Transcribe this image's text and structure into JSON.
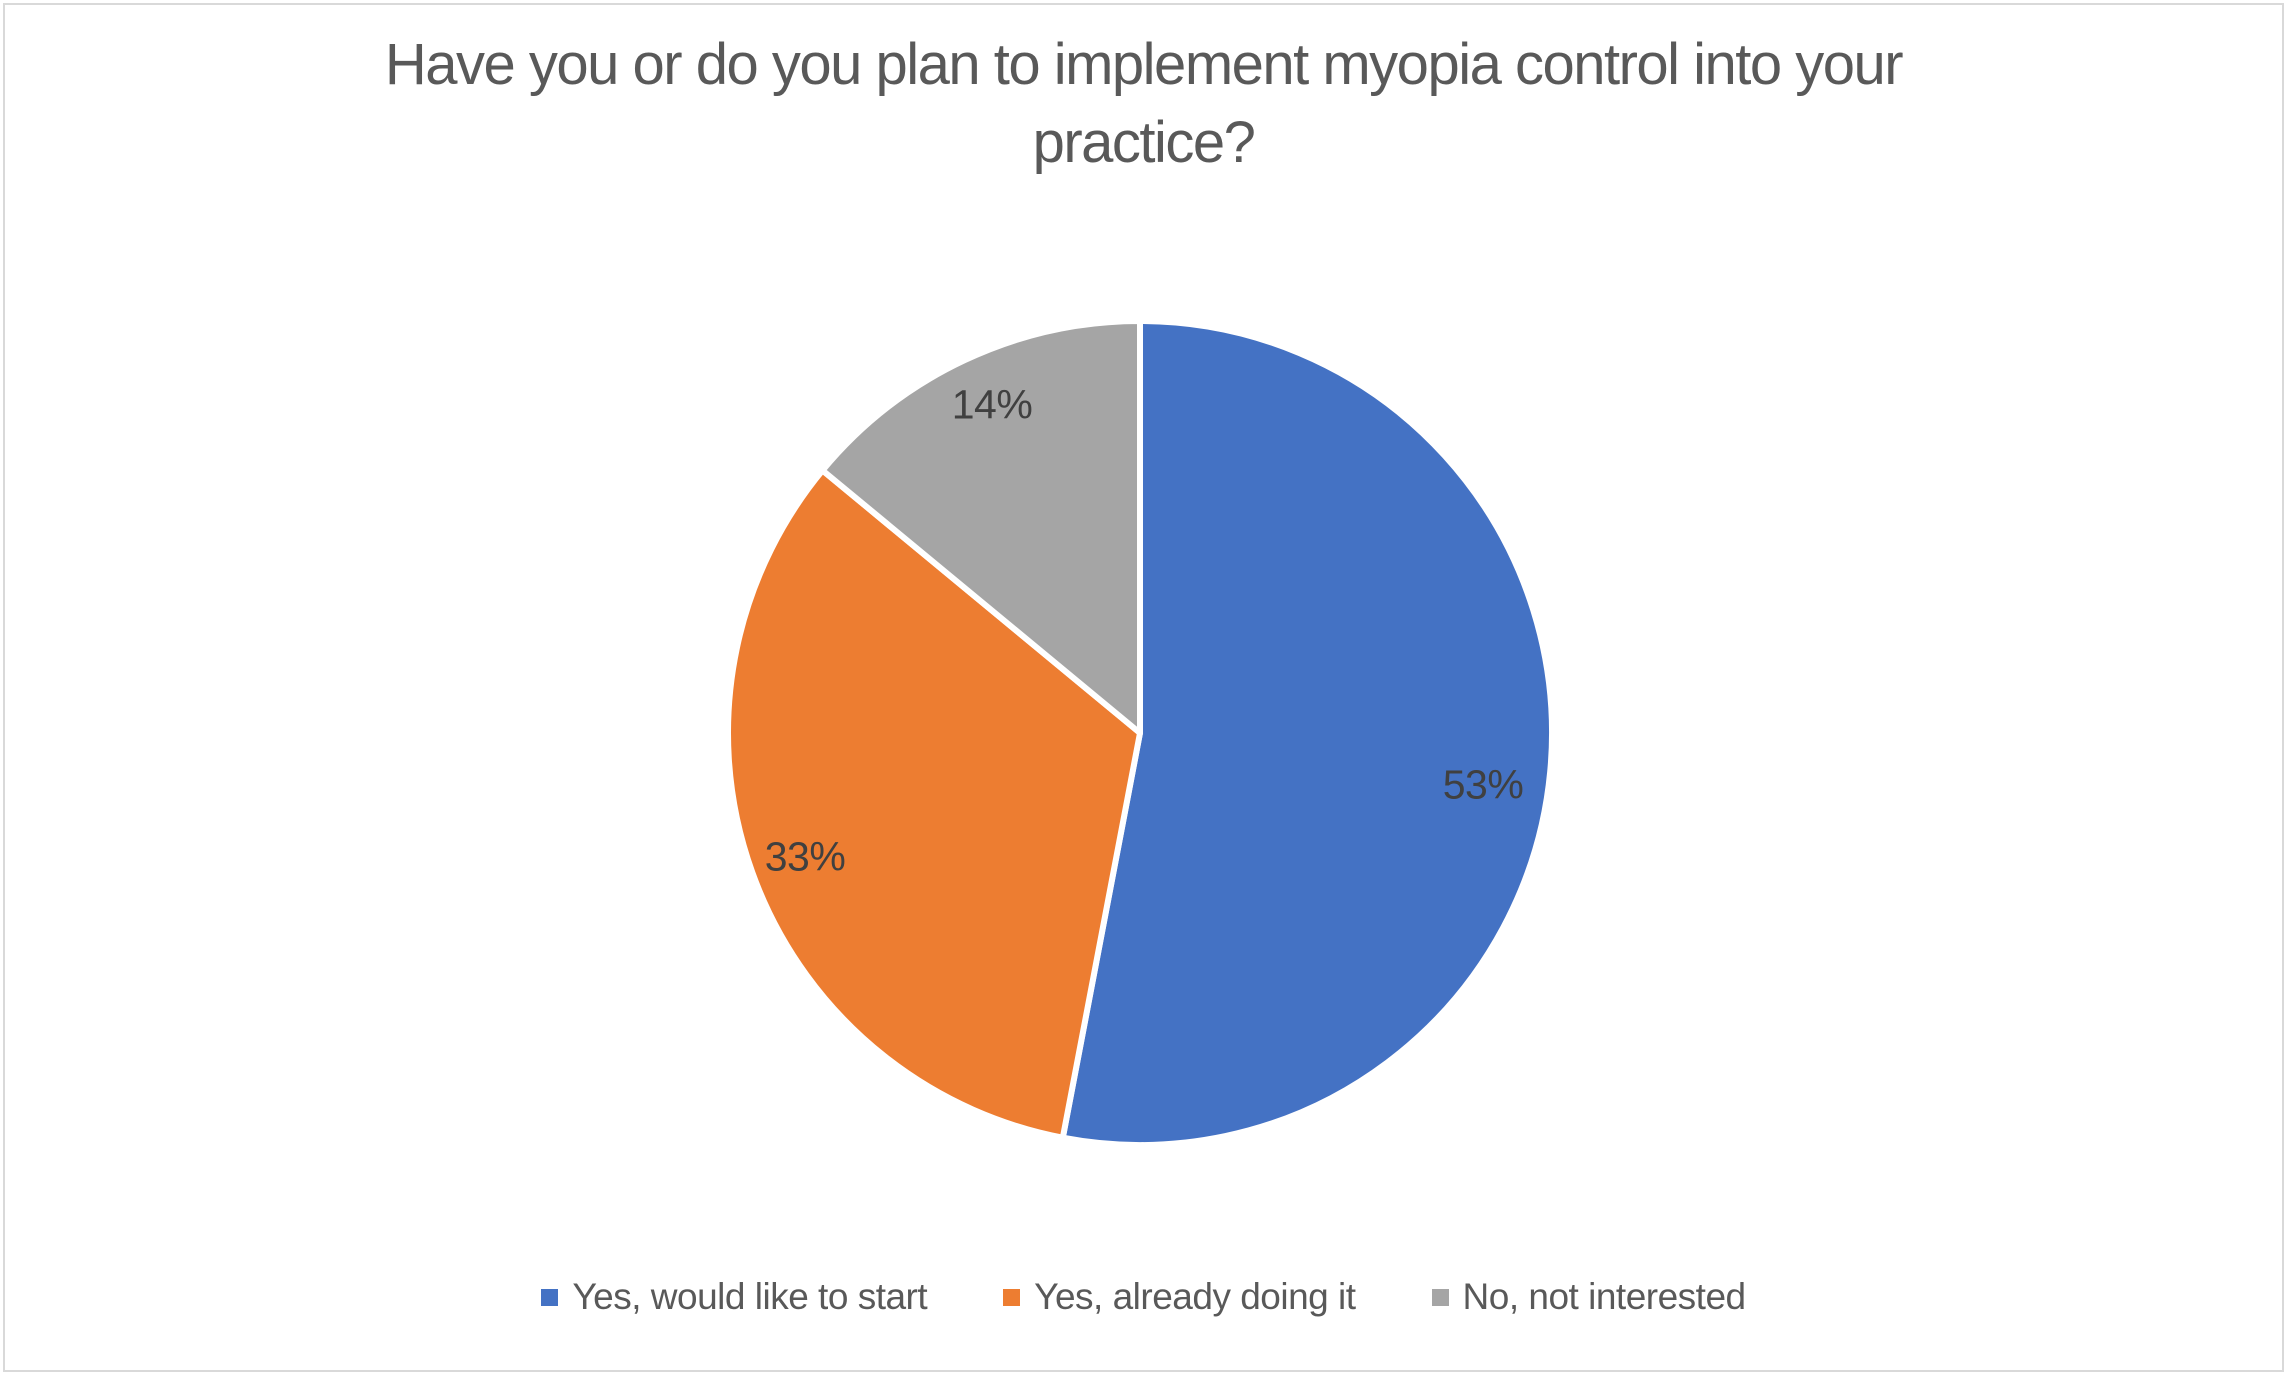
{
  "chart_data": {
    "type": "pie",
    "title": "Have you or do you plan to implement myopia control into your practice?",
    "title_lines": [
      "Have you or do you plan to implement myopia control into your",
      "practice?"
    ],
    "series": [
      {
        "label": "Yes, would like to start",
        "value": 53,
        "pct_label": "53%",
        "color": "#4472C4"
      },
      {
        "label": "Yes, already doing it",
        "value": 33,
        "pct_label": "33%",
        "color": "#ED7D31"
      },
      {
        "label": "No, not interested",
        "value": 14,
        "pct_label": "14%",
        "color": "#A5A5A5"
      }
    ],
    "start_angle_deg": 0,
    "direction": "clockwise",
    "legend_position": "bottom",
    "slice_border_color": "#FFFFFF",
    "background_color": "#FFFFFF",
    "frame_border_color": "#D9D9D9",
    "title_color": "#595959",
    "data_label_color": "#404040"
  }
}
